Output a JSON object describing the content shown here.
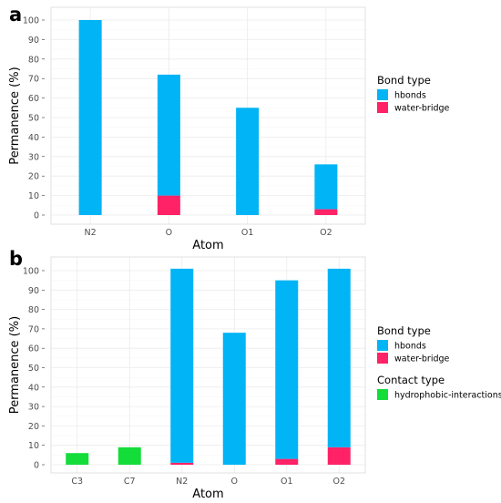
{
  "colors": {
    "hbonds": "#00B4F5",
    "water_bridge": "#FF2266",
    "hydrophobic_interactions": "#14DD3A"
  },
  "chart_data": [
    {
      "panel": "a",
      "type": "bar",
      "stacked": true,
      "categories": [
        "N2",
        "O",
        "O1",
        "O2"
      ],
      "series": [
        {
          "name": "water-bridge",
          "color_key": "water_bridge",
          "values": [
            0,
            10,
            0,
            3
          ]
        },
        {
          "name": "hbonds",
          "color_key": "hbonds",
          "values": [
            100,
            62,
            55,
            23
          ]
        }
      ],
      "xlabel": "Atom",
      "ylabel": "Permanence (%)",
      "ylim": [
        0,
        100
      ],
      "yticks": [
        "0",
        "10",
        "20",
        "30",
        "40",
        "50",
        "60",
        "70",
        "80",
        "90",
        "100"
      ],
      "grid": true,
      "legend_position": "right",
      "legend": [
        {
          "title": "Bond type",
          "items": [
            {
              "label": "hbonds",
              "color_key": "hbonds"
            },
            {
              "label": "water-bridge",
              "color_key": "water_bridge"
            }
          ]
        }
      ]
    },
    {
      "panel": "b",
      "type": "bar",
      "stacked": true,
      "categories": [
        "C3",
        "C7",
        "N2",
        "O",
        "O1",
        "O2"
      ],
      "series": [
        {
          "name": "hydrophobic-interactions",
          "color_key": "hydrophobic_interactions",
          "values": [
            6,
            9,
            0,
            0,
            0,
            0
          ]
        },
        {
          "name": "water-bridge",
          "color_key": "water_bridge",
          "values": [
            0,
            0,
            1,
            0,
            3,
            9
          ]
        },
        {
          "name": "hbonds",
          "color_key": "hbonds",
          "values": [
            0,
            0,
            100,
            68,
            92,
            92
          ]
        }
      ],
      "xlabel": "Atom",
      "ylabel": "Permanence (%)",
      "ylim": [
        0,
        100
      ],
      "yticks": [
        "0",
        "10",
        "20",
        "30",
        "40",
        "50",
        "60",
        "70",
        "80",
        "90",
        "100"
      ],
      "grid": true,
      "legend_position": "right",
      "legend": [
        {
          "title": "Bond type",
          "items": [
            {
              "label": "hbonds",
              "color_key": "hbonds"
            },
            {
              "label": "water-bridge",
              "color_key": "water_bridge"
            }
          ]
        },
        {
          "title": "Contact type",
          "items": [
            {
              "label": "hydrophobic-interactions",
              "color_key": "hydrophobic_interactions"
            }
          ]
        }
      ]
    }
  ]
}
